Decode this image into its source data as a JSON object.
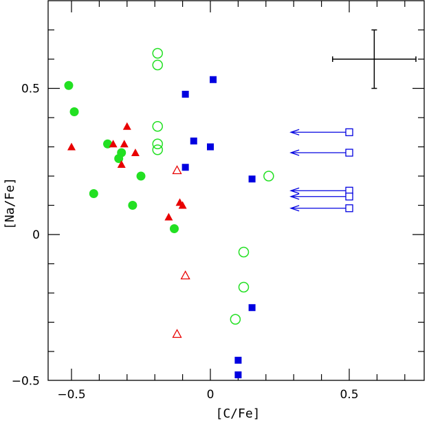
{
  "chart_data": {
    "type": "scatter",
    "title": "",
    "xlabel": "[C/Fe]",
    "ylabel": "[Na/Fe]",
    "xlim": [
      -0.6,
      0.78
    ],
    "ylim": [
      -0.5,
      0.77
    ],
    "xticks": [
      -0.5,
      0,
      0.5
    ],
    "xtick_labels": [
      "−0.5",
      "0",
      "0.5"
    ],
    "yticks": [
      -0.5,
      0,
      0.5
    ],
    "ytick_labels": [
      "−0.5",
      "0",
      "0.5"
    ],
    "grid": false,
    "colors": {
      "green": "#22e022",
      "red": "#e80000",
      "blue": "#0000e0"
    },
    "series": [
      {
        "marker": "filled-circle",
        "color": "green",
        "points": [
          [
            -0.51,
            0.51
          ],
          [
            -0.49,
            0.42
          ],
          [
            -0.37,
            0.31
          ],
          [
            -0.32,
            0.28
          ],
          [
            -0.33,
            0.26
          ],
          [
            -0.42,
            0.14
          ],
          [
            -0.25,
            0.2
          ],
          [
            -0.28,
            0.1
          ],
          [
            -0.13,
            0.02
          ]
        ]
      },
      {
        "marker": "open-circle",
        "color": "green",
        "points": [
          [
            -0.19,
            0.62
          ],
          [
            -0.19,
            0.58
          ],
          [
            -0.19,
            0.37
          ],
          [
            -0.19,
            0.31
          ],
          [
            -0.19,
            0.29
          ],
          [
            0.21,
            0.2
          ],
          [
            0.12,
            -0.06
          ],
          [
            0.12,
            -0.18
          ],
          [
            0.09,
            -0.29
          ]
        ]
      },
      {
        "marker": "filled-triangle",
        "color": "red",
        "points": [
          [
            -0.5,
            0.3
          ],
          [
            -0.35,
            0.31
          ],
          [
            -0.3,
            0.37
          ],
          [
            -0.31,
            0.31
          ],
          [
            -0.32,
            0.24
          ],
          [
            -0.27,
            0.28
          ],
          [
            -0.15,
            0.06
          ],
          [
            -0.11,
            0.11
          ],
          [
            -0.1,
            0.1
          ]
        ]
      },
      {
        "marker": "open-triangle",
        "color": "red",
        "points": [
          [
            -0.12,
            0.22
          ],
          [
            -0.09,
            -0.14
          ],
          [
            -0.12,
            -0.34
          ]
        ]
      },
      {
        "marker": "filled-square",
        "color": "blue",
        "points": [
          [
            0.01,
            0.53
          ],
          [
            -0.09,
            0.48
          ],
          [
            -0.06,
            0.32
          ],
          [
            0.0,
            0.3
          ],
          [
            -0.09,
            0.23
          ],
          [
            0.15,
            0.19
          ],
          [
            0.15,
            -0.25
          ],
          [
            0.1,
            -0.43
          ],
          [
            0.1,
            -0.48
          ]
        ]
      },
      {
        "marker": "open-square-upper-limit",
        "color": "blue",
        "arrow_to_x": 0.29,
        "points": [
          [
            0.5,
            0.35
          ],
          [
            0.5,
            0.28
          ],
          [
            0.5,
            0.15
          ],
          [
            0.5,
            0.13
          ],
          [
            0.5,
            0.09
          ]
        ]
      }
    ],
    "error_bar": {
      "x": 0.59,
      "y": 0.6,
      "xerr": 0.15,
      "yerr": 0.1
    }
  }
}
